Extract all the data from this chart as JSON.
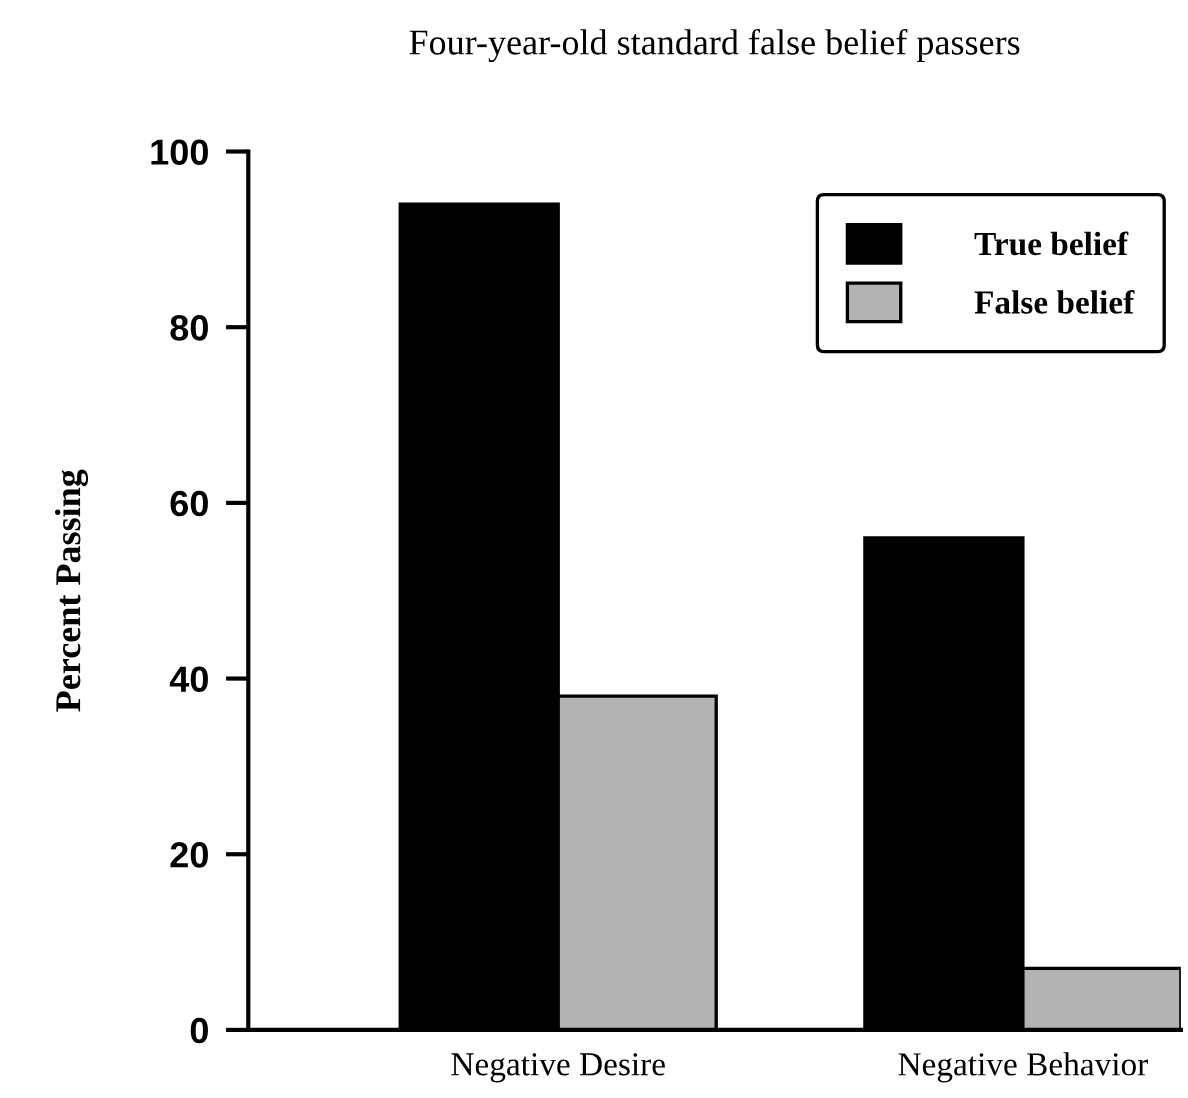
{
  "chart_data": {
    "type": "bar",
    "title": "Four-year-old standard false belief passers",
    "ylabel": "Percent Passing",
    "categories": [
      "Negative Desire",
      "Negative Behavior"
    ],
    "series": [
      {
        "name": "True belief",
        "color": "#000000",
        "values": [
          94,
          56
        ]
      },
      {
        "name": "False belief",
        "color": "#b3b3b3",
        "values": [
          38,
          7
        ]
      }
    ],
    "ylim": [
      0,
      100
    ],
    "yticks": [
      0,
      20,
      40,
      60,
      80,
      100
    ],
    "grid": false,
    "legend": "top right"
  }
}
